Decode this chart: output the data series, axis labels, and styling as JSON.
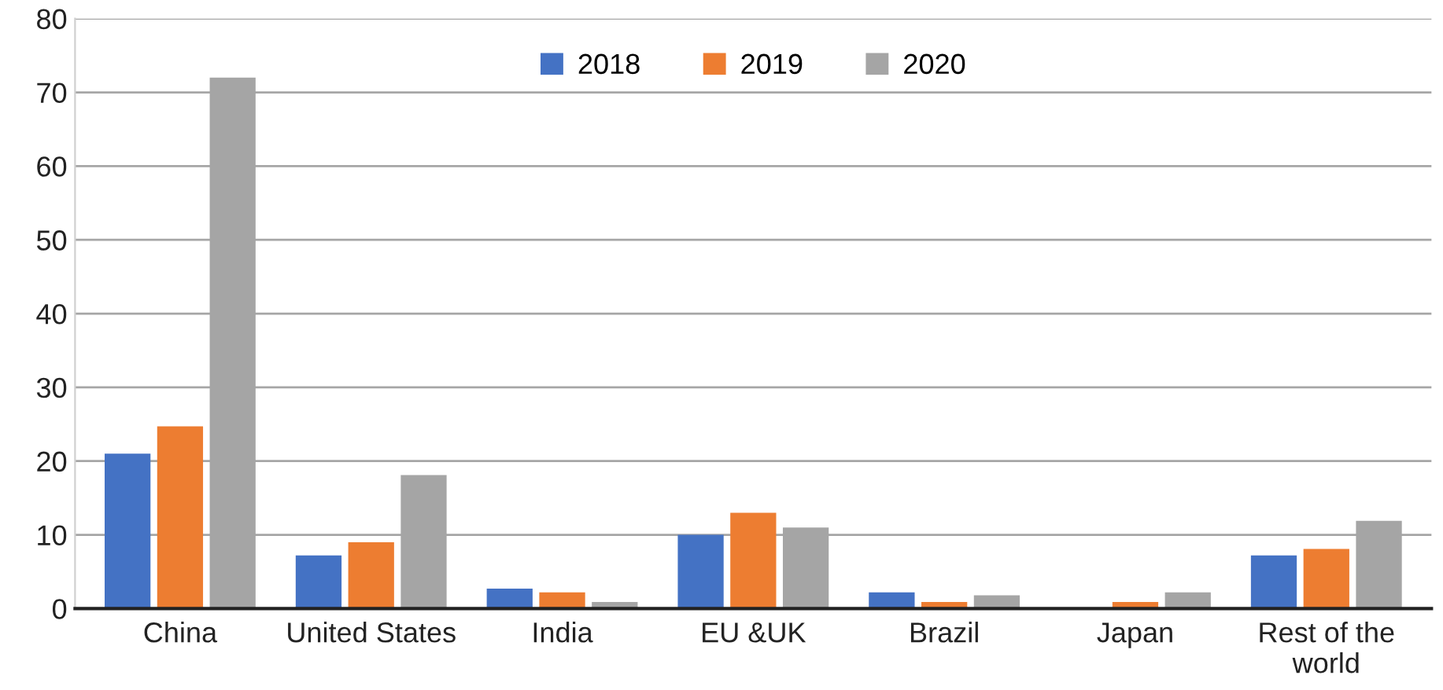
{
  "chart_data": {
    "type": "bar",
    "categories": [
      "China",
      "United States",
      "India",
      "EU &UK",
      "Brazil",
      "Japan",
      "Rest of the\nworld"
    ],
    "series": [
      {
        "name": "2018",
        "color": "#4472c4",
        "values": [
          21.0,
          7.2,
          2.7,
          10.0,
          2.2,
          null,
          7.2
        ]
      },
      {
        "name": "2019",
        "color": "#ed7d31",
        "values": [
          24.7,
          9.0,
          2.2,
          13.0,
          0.9,
          0.9,
          8.1
        ]
      },
      {
        "name": "2020",
        "color": "#a5a5a5",
        "values": [
          72,
          18.1,
          0.9,
          11.0,
          1.8,
          2.2,
          11.9
        ]
      }
    ],
    "ylim": [
      0,
      80
    ],
    "yticks": [
      0,
      10,
      20,
      30,
      40,
      50,
      60,
      70,
      80
    ],
    "grid": "y",
    "legend": "top"
  }
}
